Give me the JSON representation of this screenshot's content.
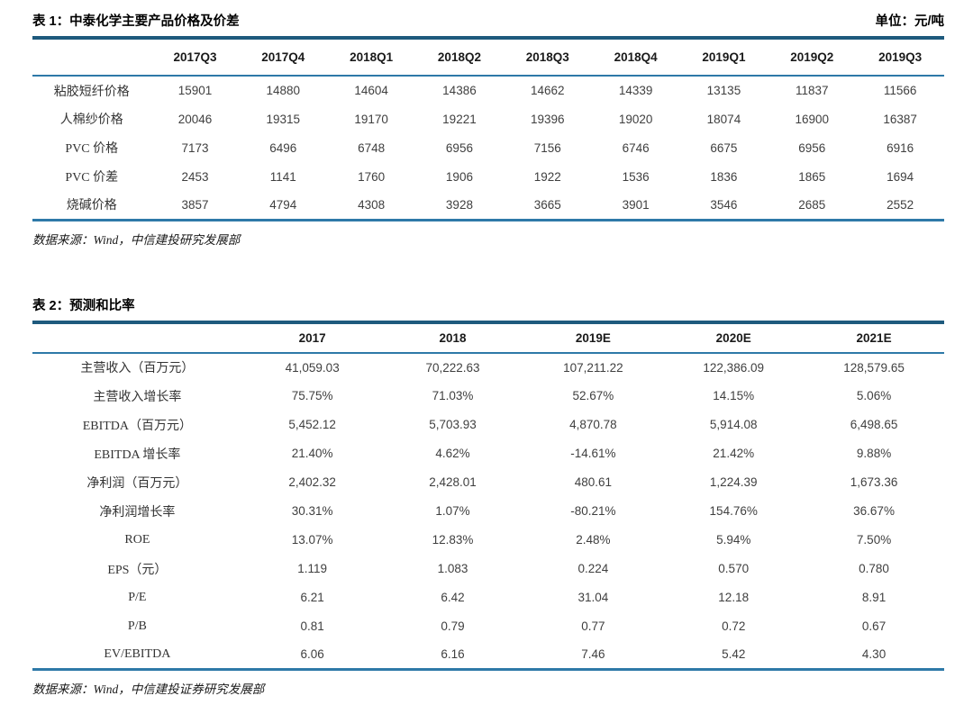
{
  "colors": {
    "border_dark": "#1E5A7D",
    "border_light": "#2E79A8"
  },
  "table1": {
    "title": "表 1：中泰化学主要产品价格及价差",
    "unit_label": "单位：元/吨",
    "columns": [
      "2017Q3",
      "2017Q4",
      "2018Q1",
      "2018Q2",
      "2018Q3",
      "2018Q4",
      "2019Q1",
      "2019Q2",
      "2019Q3"
    ],
    "rows": [
      {
        "label": "粘胶短纤价格",
        "values": [
          "15901",
          "14880",
          "14604",
          "14386",
          "14662",
          "14339",
          "13135",
          "11837",
          "11566"
        ]
      },
      {
        "label": "人棉纱价格",
        "values": [
          "20046",
          "19315",
          "19170",
          "19221",
          "19396",
          "19020",
          "18074",
          "16900",
          "16387"
        ]
      },
      {
        "label": "PVC 价格",
        "values": [
          "7173",
          "6496",
          "6748",
          "6956",
          "7156",
          "6746",
          "6675",
          "6956",
          "6916"
        ]
      },
      {
        "label": "PVC 价差",
        "values": [
          "2453",
          "1141",
          "1760",
          "1906",
          "1922",
          "1536",
          "1836",
          "1865",
          "1694"
        ]
      },
      {
        "label": "烧碱价格",
        "values": [
          "3857",
          "4794",
          "4308",
          "3928",
          "3665",
          "3901",
          "3546",
          "2685",
          "2552"
        ]
      }
    ],
    "source": "数据来源：Wind，中信建投研究发展部"
  },
  "table2": {
    "title": "表 2：预测和比率",
    "columns": [
      "2017",
      "2018",
      "2019E",
      "2020E",
      "2021E"
    ],
    "rows": [
      {
        "label": "主营收入（百万元）",
        "values": [
          "41,059.03",
          "70,222.63",
          "107,211.22",
          "122,386.09",
          "128,579.65"
        ]
      },
      {
        "label": "主营收入增长率",
        "values": [
          "75.75%",
          "71.03%",
          "52.67%",
          "14.15%",
          "5.06%"
        ]
      },
      {
        "label": "EBITDA（百万元）",
        "values": [
          "5,452.12",
          "5,703.93",
          "4,870.78",
          "5,914.08",
          "6,498.65"
        ]
      },
      {
        "label": "EBITDA 增长率",
        "values": [
          "21.40%",
          "4.62%",
          "-14.61%",
          "21.42%",
          "9.88%"
        ]
      },
      {
        "label": "净利润（百万元）",
        "values": [
          "2,402.32",
          "2,428.01",
          "480.61",
          "1,224.39",
          "1,673.36"
        ]
      },
      {
        "label": "净利润增长率",
        "values": [
          "30.31%",
          "1.07%",
          "-80.21%",
          "154.76%",
          "36.67%"
        ]
      },
      {
        "label": "ROE",
        "values": [
          "13.07%",
          "12.83%",
          "2.48%",
          "5.94%",
          "7.50%"
        ]
      },
      {
        "label": "EPS（元）",
        "values": [
          "1.119",
          "1.083",
          "0.224",
          "0.570",
          "0.780"
        ]
      },
      {
        "label": "P/E",
        "values": [
          "6.21",
          "6.42",
          "31.04",
          "12.18",
          "8.91"
        ]
      },
      {
        "label": "P/B",
        "values": [
          "0.81",
          "0.79",
          "0.77",
          "0.72",
          "0.67"
        ]
      },
      {
        "label": "EV/EBITDA",
        "values": [
          "6.06",
          "6.16",
          "7.46",
          "5.42",
          "4.30"
        ]
      }
    ],
    "source": "数据来源：Wind，中信建投证券研究发展部"
  }
}
